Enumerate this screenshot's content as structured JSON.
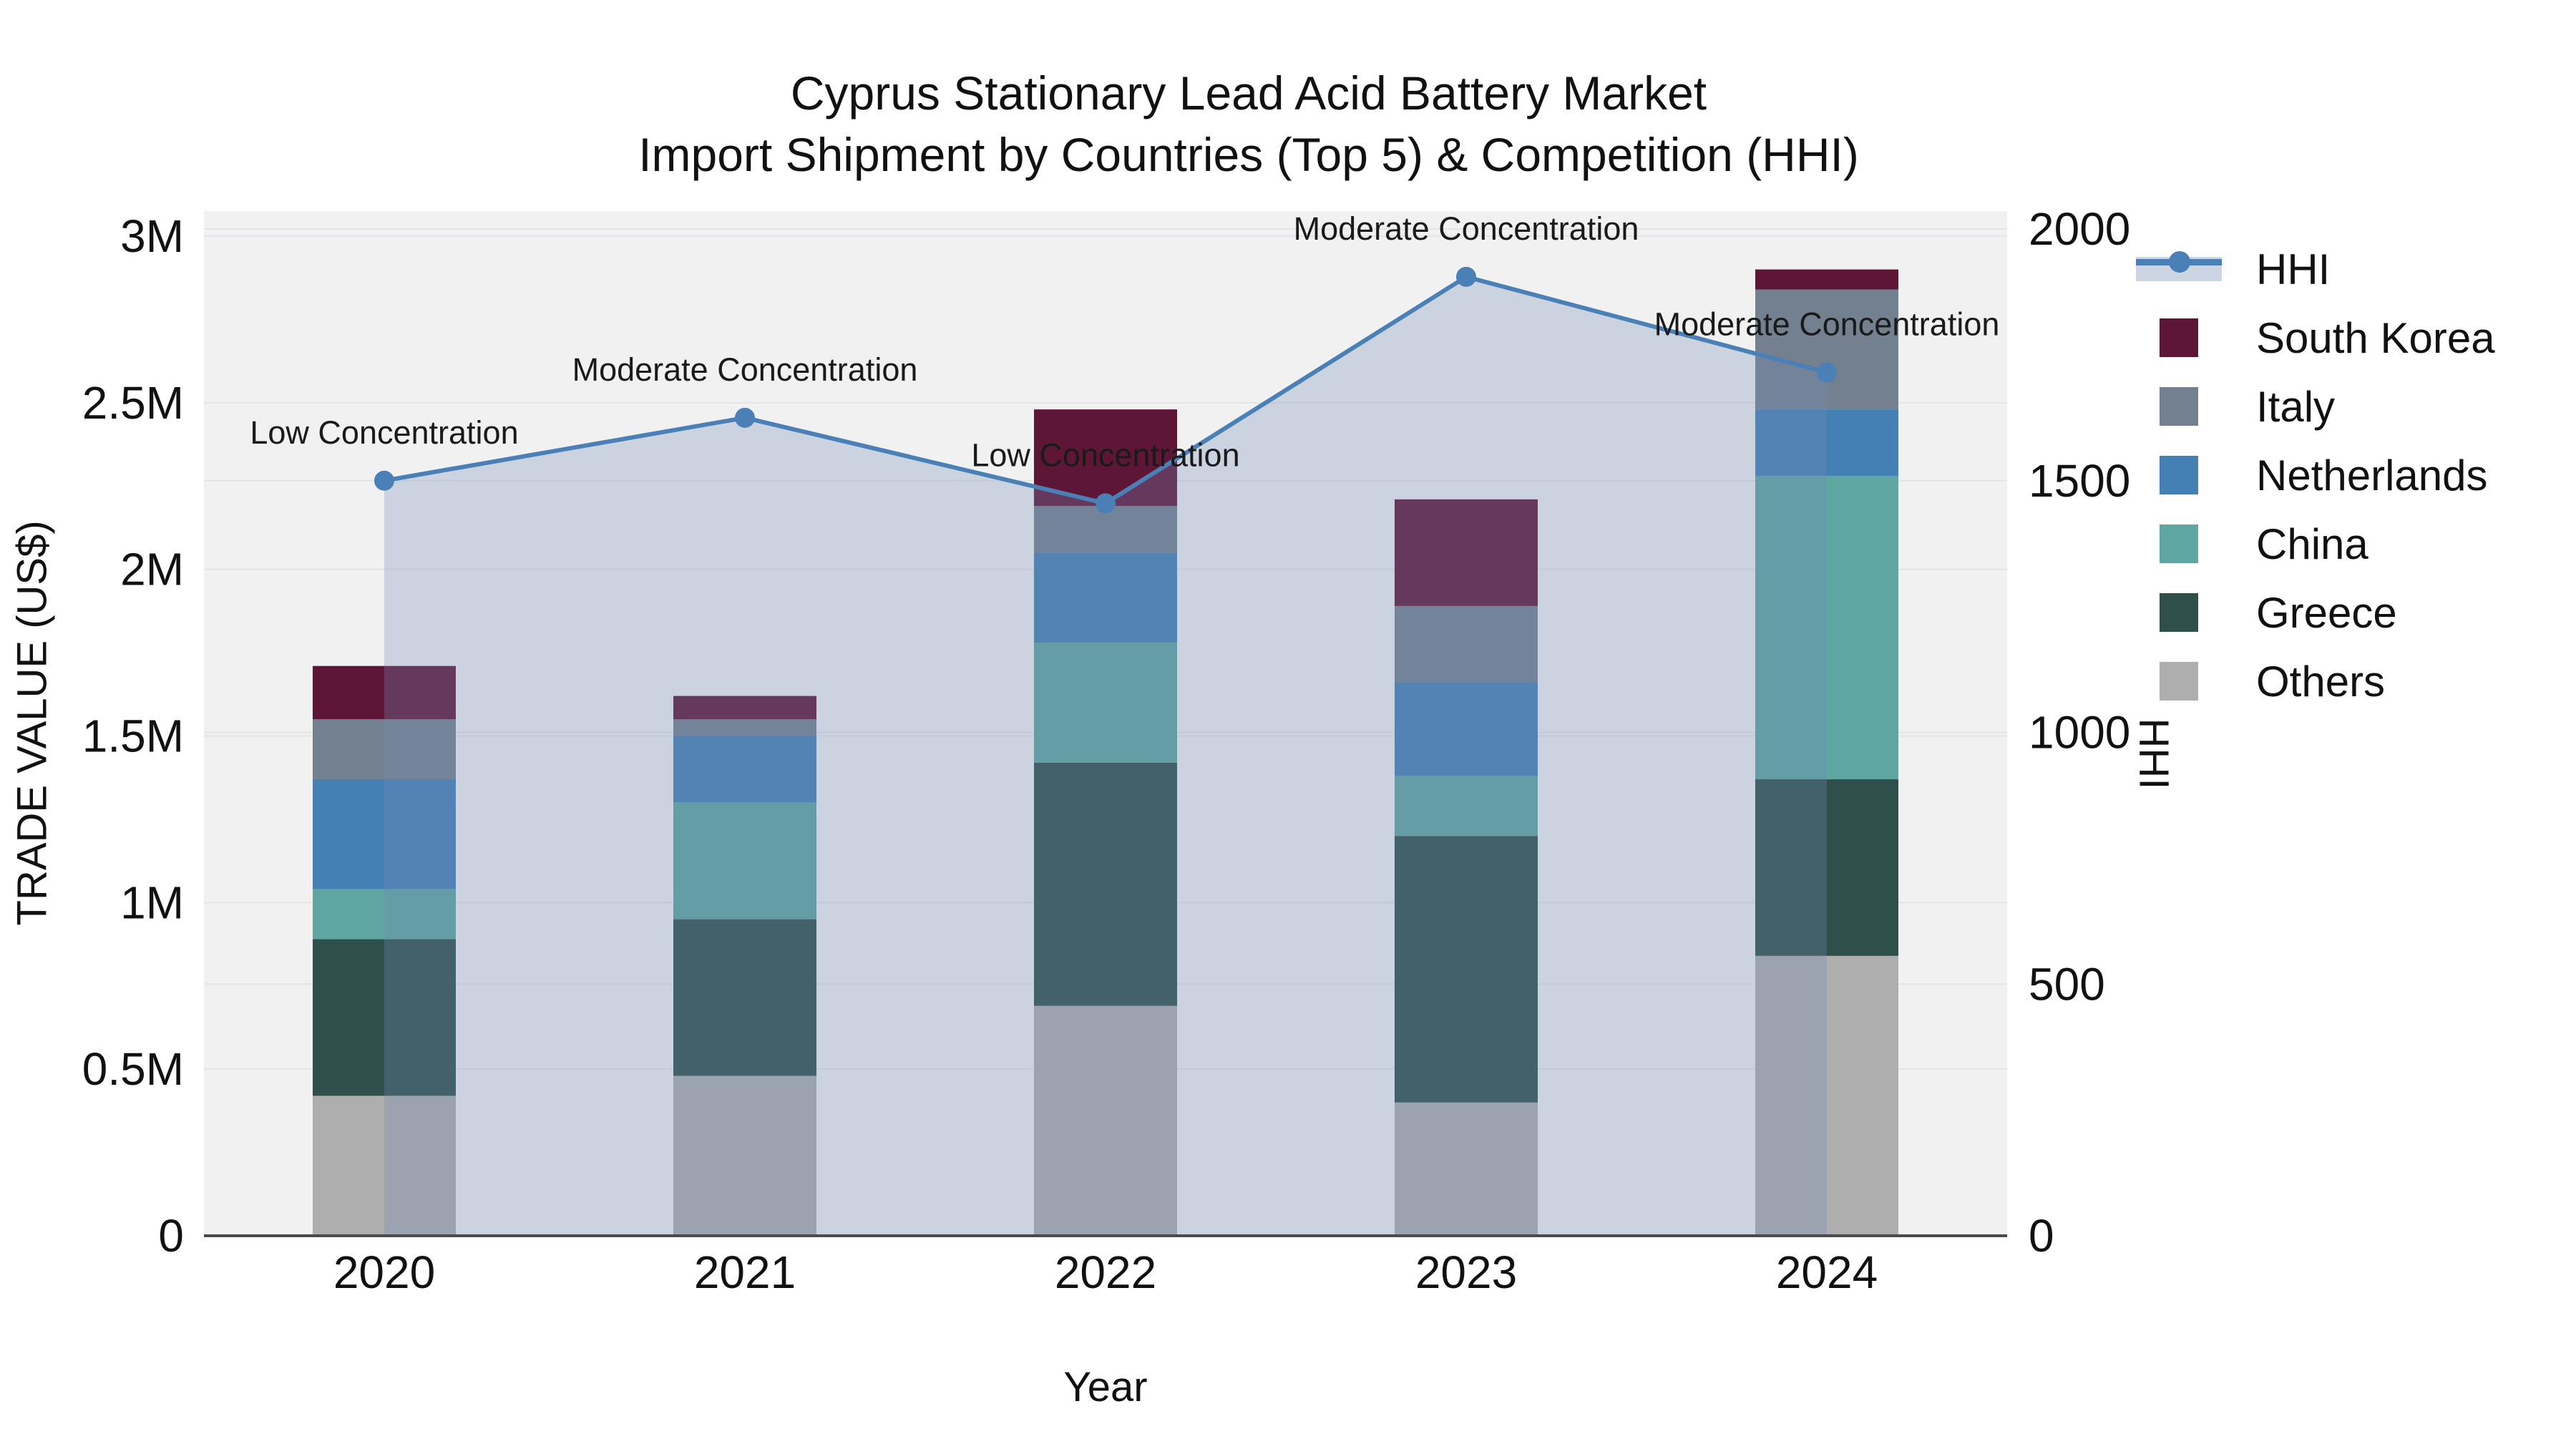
{
  "title": {
    "line1": "Cyprus Stationary Lead Acid Battery Market",
    "line2": "Import Shipment by Countries (Top 5) & Competition (HHI)"
  },
  "axes": {
    "left": {
      "title": "TRADE VALUE (US$)",
      "ticks": [
        "0",
        "0.5M",
        "1M",
        "1.5M",
        "2M",
        "2.5M",
        "3M"
      ]
    },
    "right": {
      "title": "HHI",
      "ticks": [
        "0",
        "500",
        "1000",
        "1500",
        "2000"
      ]
    },
    "x": {
      "title": "Year",
      "categories": [
        "2020",
        "2021",
        "2022",
        "2023",
        "2024"
      ]
    }
  },
  "legend": {
    "items": [
      {
        "label": "HHI",
        "type": "line",
        "color": "#4a80b5"
      },
      {
        "label": "South Korea",
        "type": "square",
        "color": "#5e1637"
      },
      {
        "label": "Italy",
        "type": "square",
        "color": "#73808f"
      },
      {
        "label": "Netherlands",
        "type": "square",
        "color": "#4480b4"
      },
      {
        "label": "China",
        "type": "square",
        "color": "#5fa5a1"
      },
      {
        "label": "Greece",
        "type": "square",
        "color": "#2f4f4b"
      },
      {
        "label": "Others",
        "type": "square",
        "color": "#aeaeae"
      }
    ]
  },
  "colors": {
    "plot_bg": "#f1f1f2",
    "grid": "#e4e4e8",
    "axis_line": "#4b4b4b",
    "hhi_line": "#4a80b5",
    "hhi_area_fill": "rgba(115,138,182,0.30)",
    "annotation_text": "#1a1a1a"
  },
  "chart_data": {
    "type": "bar+line",
    "title": "Cyprus Stationary Lead Acid Battery Market — Import Shipment by Countries (Top 5) & Competition (HHI)",
    "categories": [
      "2020",
      "2021",
      "2022",
      "2023",
      "2024"
    ],
    "xlabel": "Year",
    "ylabel_left": "TRADE VALUE (US$)",
    "ylabel_right": "HHI",
    "ylim_left_musd": [
      0,
      3.0
    ],
    "ylim_right_hhi": [
      0,
      2000
    ],
    "grid": true,
    "legend_position": "right",
    "bar_stack_order_bottom_to_top": [
      "Others",
      "Greece",
      "China",
      "Netherlands",
      "Italy",
      "South Korea"
    ],
    "series": [
      {
        "name": "South Korea",
        "color": "#5e1637",
        "values_musd": [
          0.16,
          0.07,
          0.29,
          0.32,
          0.06
        ]
      },
      {
        "name": "Italy",
        "color": "#73808f",
        "values_musd": [
          0.18,
          0.05,
          0.14,
          0.23,
          0.36
        ]
      },
      {
        "name": "Netherlands",
        "color": "#4480b4",
        "values_musd": [
          0.33,
          0.2,
          0.27,
          0.28,
          0.2
        ]
      },
      {
        "name": "China",
        "color": "#5fa5a1",
        "values_musd": [
          0.15,
          0.35,
          0.36,
          0.18,
          0.91
        ]
      },
      {
        "name": "Greece",
        "color": "#2f4f4b",
        "values_musd": [
          0.47,
          0.47,
          0.73,
          0.8,
          0.53
        ]
      },
      {
        "name": "Others",
        "color": "#aeaeae",
        "values_musd": [
          0.42,
          0.48,
          0.69,
          0.4,
          0.84
        ]
      }
    ],
    "bar_totals_musd": [
      1.71,
      1.62,
      2.48,
      2.21,
      2.9
    ],
    "line_series": {
      "name": "HHI",
      "color": "#4a80b5",
      "values": [
        1500,
        1625,
        1455,
        1905,
        1715
      ],
      "area_fill": true
    },
    "annotations": [
      {
        "category": "2020",
        "text": "Low Concentration"
      },
      {
        "category": "2021",
        "text": "Moderate Concentration"
      },
      {
        "category": "2022",
        "text": "Low Concentration"
      },
      {
        "category": "2023",
        "text": "Moderate Concentration"
      },
      {
        "category": "2024",
        "text": "Moderate Concentration"
      }
    ]
  }
}
